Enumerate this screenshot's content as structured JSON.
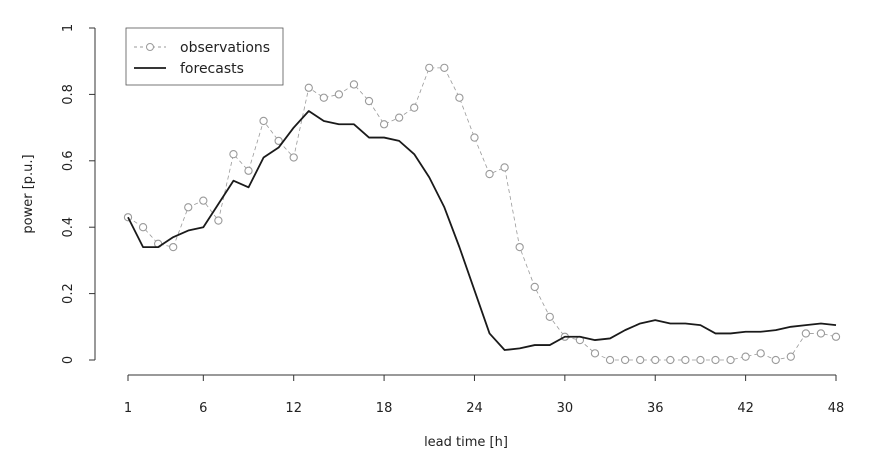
{
  "chart_data": {
    "type": "line",
    "title": "",
    "xlabel": "lead time [h]",
    "ylabel": "power [p.u.]",
    "xlim": [
      1,
      48
    ],
    "ylim": [
      0,
      1
    ],
    "x_ticks": [
      "1",
      "6",
      "12",
      "18",
      "24",
      "30",
      "36",
      "42",
      "48"
    ],
    "y_ticks": [
      "0",
      "0.2",
      "0.4",
      "0.6",
      "0.8",
      "1"
    ],
    "grid": false,
    "legend_position": "top-left",
    "x": [
      1,
      2,
      3,
      4,
      5,
      6,
      7,
      8,
      9,
      10,
      11,
      12,
      13,
      14,
      15,
      16,
      17,
      18,
      19,
      20,
      21,
      22,
      23,
      24,
      25,
      26,
      27,
      28,
      29,
      30,
      31,
      32,
      33,
      34,
      35,
      36,
      37,
      38,
      39,
      40,
      41,
      42,
      43,
      44,
      45,
      46,
      47,
      48
    ],
    "series": [
      {
        "name": "observations",
        "style": "points-dashed",
        "color": "#9a9a9a",
        "values": [
          0.43,
          0.4,
          0.35,
          0.34,
          0.46,
          0.48,
          0.42,
          0.62,
          0.57,
          0.72,
          0.66,
          0.61,
          0.82,
          0.79,
          0.8,
          0.83,
          0.78,
          0.71,
          0.73,
          0.76,
          0.88,
          0.88,
          0.79,
          0.67,
          0.56,
          0.58,
          0.34,
          0.22,
          0.13,
          0.07,
          0.06,
          0.02,
          0.0,
          0.0,
          0.0,
          0.0,
          0.0,
          0.0,
          0.0,
          0.0,
          0.0,
          0.01,
          0.02,
          0.0,
          0.01,
          0.08,
          0.08,
          0.07
        ]
      },
      {
        "name": "forecasts",
        "style": "solid",
        "color": "#1a1a1a",
        "values": [
          0.43,
          0.34,
          0.34,
          0.37,
          0.39,
          0.4,
          0.47,
          0.54,
          0.52,
          0.61,
          0.64,
          0.7,
          0.75,
          0.72,
          0.71,
          0.71,
          0.67,
          0.67,
          0.66,
          0.62,
          0.55,
          0.46,
          0.34,
          0.21,
          0.08,
          0.03,
          0.035,
          0.045,
          0.045,
          0.07,
          0.07,
          0.06,
          0.065,
          0.09,
          0.11,
          0.12,
          0.11,
          0.11,
          0.105,
          0.08,
          0.08,
          0.085,
          0.085,
          0.09,
          0.1,
          0.105,
          0.11,
          0.105
        ]
      }
    ]
  }
}
